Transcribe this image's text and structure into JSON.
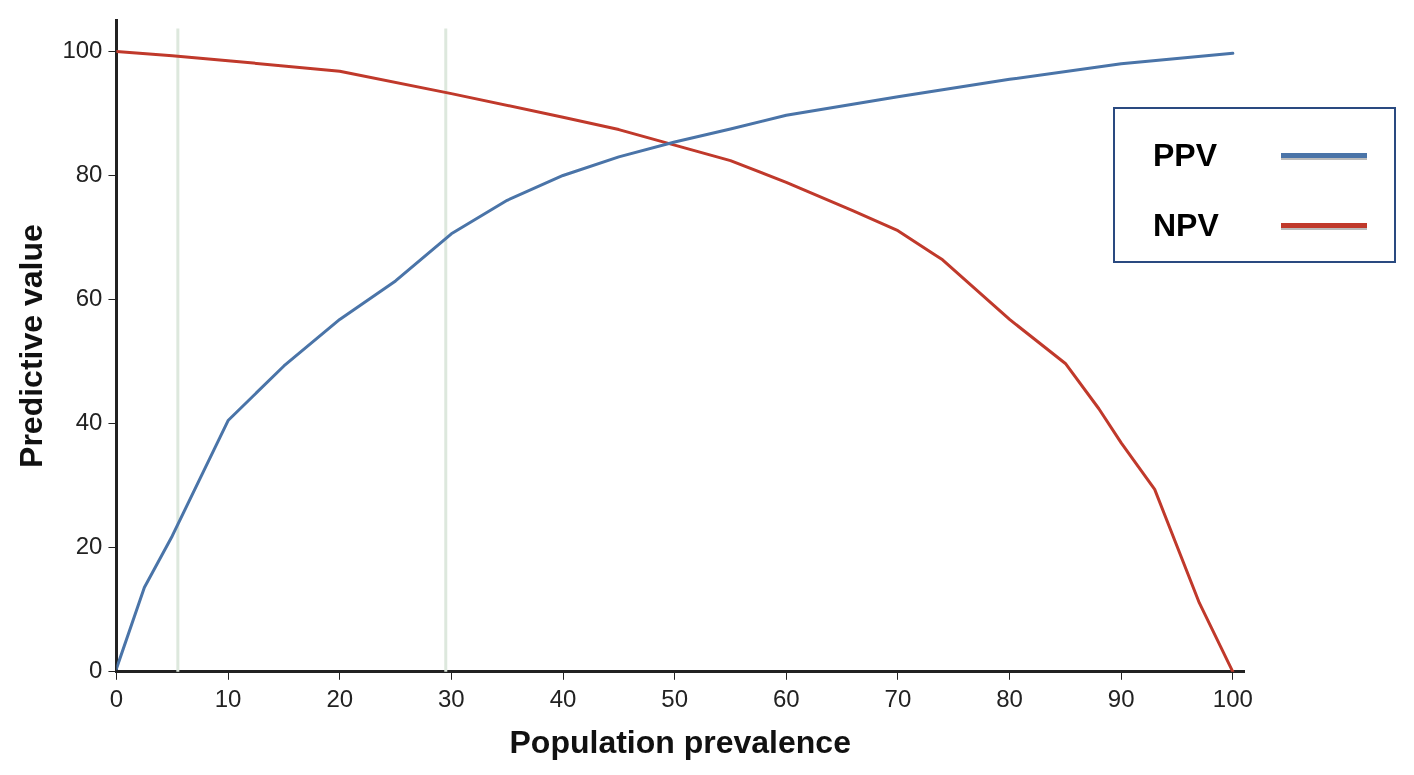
{
  "chart_data": {
    "type": "line",
    "xlabel": "Population prevalence",
    "ylabel": "Predictive value",
    "xlim": [
      0,
      101
    ],
    "ylim": [
      0,
      105
    ],
    "xticks": [
      0,
      10,
      20,
      30,
      40,
      50,
      60,
      70,
      80,
      90,
      100
    ],
    "yticks": [
      0,
      20,
      40,
      60,
      80,
      100
    ],
    "grid": false,
    "legend": "right",
    "marker": "none",
    "line_style": "solid",
    "series": [
      {
        "name": "PPV",
        "color": "#4a74a8",
        "x": [
          0,
          2.5,
          5,
          10,
          15,
          20,
          25,
          30,
          35,
          40,
          45,
          50,
          55,
          60,
          70,
          80,
          90,
          100
        ],
        "values": [
          0.5,
          13.6,
          21.9,
          40.5,
          49.3,
          56.8,
          63,
          70.6,
          76,
          80,
          83,
          85.4,
          87.5,
          89.7,
          92.7,
          95.5,
          98,
          99.7
        ]
      },
      {
        "name": "NPV",
        "color": "#c0392b",
        "x": [
          0,
          5,
          10,
          20,
          30,
          40,
          45,
          50,
          55,
          60,
          66,
          70,
          74,
          80,
          85,
          88,
          90,
          93,
          97,
          100
        ],
        "values": [
          100,
          99.3,
          98.5,
          96.8,
          93.2,
          89.4,
          87.4,
          84.9,
          82.4,
          78.9,
          74.3,
          71.1,
          66.4,
          56.8,
          49.7,
          42.4,
          36.9,
          29.4,
          11.1,
          0
        ]
      }
    ],
    "ref_lines": [
      {
        "axis": "x",
        "value": 5.5,
        "color": "#dde8dd"
      },
      {
        "axis": "x",
        "value": 29.5,
        "color": "#dde8dd"
      }
    ]
  }
}
